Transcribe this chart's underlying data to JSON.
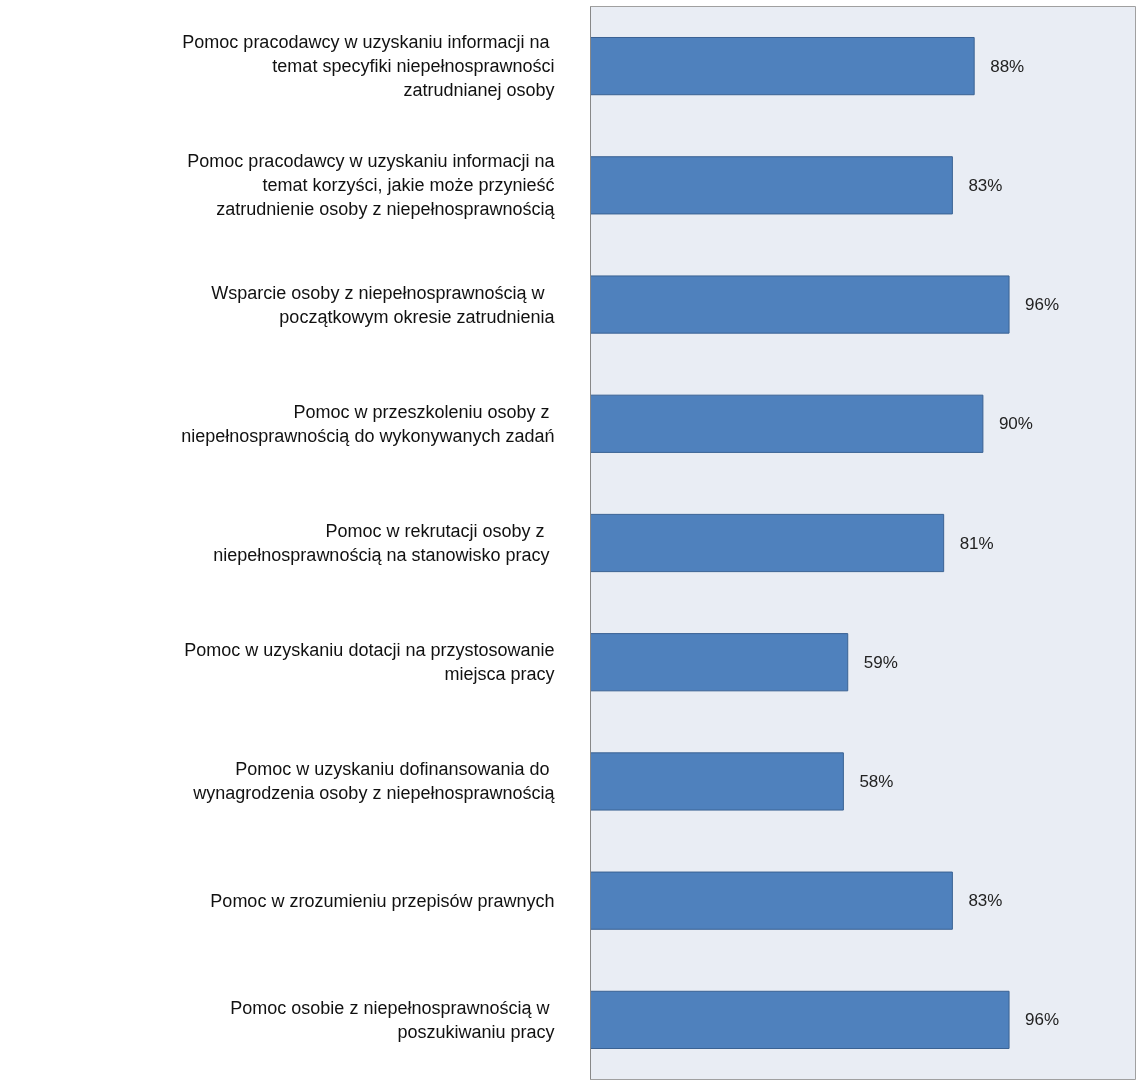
{
  "chart_data": {
    "type": "bar",
    "orientation": "horizontal",
    "categories": [
      "Pomoc  pracodawcy w uzyskaniu informacji na temat specyfiki niepełnosprawności zatrudnianej osoby",
      "Pomoc pracodawcy w uzyskaniu informacji na temat korzyści, jakie może przynieść zatrudnienie osoby z niepełnosprawnością",
      "Wsparcie osoby  z niepełnosprawnością  w początkowym okresie zatrudnienia",
      "Pomoc w  przeszkoleniu osoby z niepełnosprawnością do wykonywanych zadań",
      "Pomoc w  rekrutacji osoby  z niepełnosprawnością  na stanowisko pracy",
      "Pomoc w uzyskaniu dotacji na przystosowanie miejsca pracy",
      "Pomoc w uzyskaniu dofinansowania  do wynagrodzenia osoby z niepełnosprawnością",
      "Pomoc w zrozumieniu przepisów prawnych",
      "Pomoc  osobie z niepełnosprawnością w poszukiwaniu pracy"
    ],
    "values": [
      88,
      83,
      96,
      90,
      81,
      59,
      58,
      83,
      96
    ],
    "value_labels": [
      "88%",
      "83%",
      "96%",
      "90%",
      "81%",
      "59%",
      "58%",
      "83%",
      "96%"
    ],
    "color": "#4f81bd",
    "xlim": [
      0,
      125
    ],
    "tick_labels": "y",
    "grid": false
  }
}
